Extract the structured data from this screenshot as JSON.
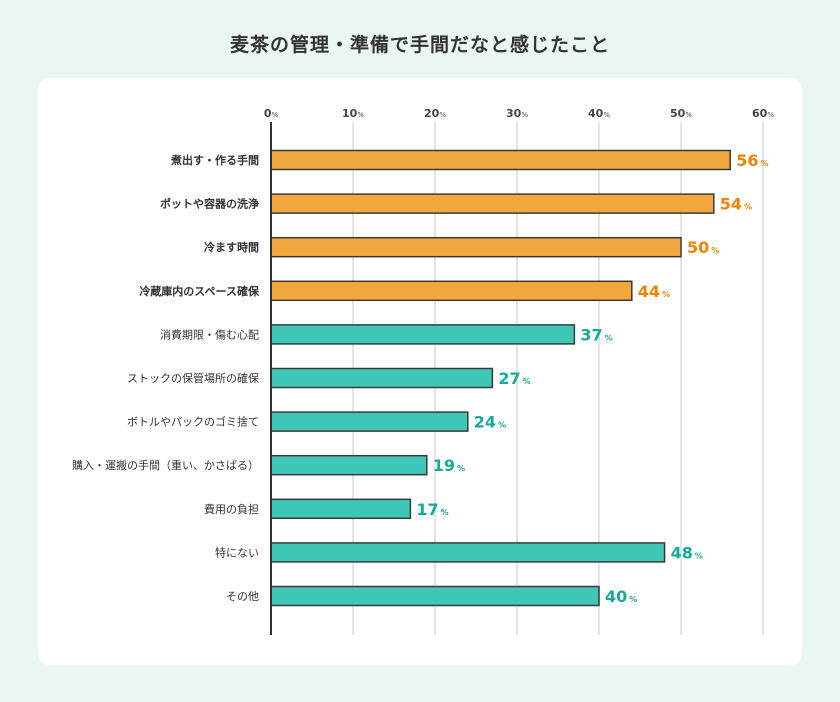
{
  "chart_data": {
    "type": "bar",
    "orientation": "horizontal",
    "title": "麦茶の管理・準備で手間だなと感じたこと",
    "xlim": [
      0,
      60
    ],
    "xticks": [
      0,
      10,
      20,
      30,
      40,
      50,
      60
    ],
    "tick_unit": "%",
    "grid": true,
    "categories": [
      "煮出す・作る手間",
      "ポットや容器の洗浄",
      "冷ます時間",
      "冷蔵庫内のスペース確保",
      "消費期限・傷む心配",
      "ストックの保管場所の確保",
      "ボトルやパックのゴミ捨て",
      "購入・運搬の手間（重い、かさばる）",
      "費用の負担",
      "特にない",
      "その他"
    ],
    "values": [
      56,
      54,
      50,
      44,
      37,
      27,
      24,
      19,
      17,
      48,
      40
    ],
    "highlighted": [
      true,
      true,
      true,
      true,
      false,
      false,
      false,
      false,
      false,
      false,
      false
    ],
    "value_unit": "%"
  },
  "colors": {
    "highlight_bar": "#f2a73e",
    "highlight_label": "#f08300",
    "normal_bar": "#3ec6b7",
    "normal_label": "#17a999",
    "bar_stroke": "#3a3a3a",
    "background": "#eaf6f3"
  }
}
